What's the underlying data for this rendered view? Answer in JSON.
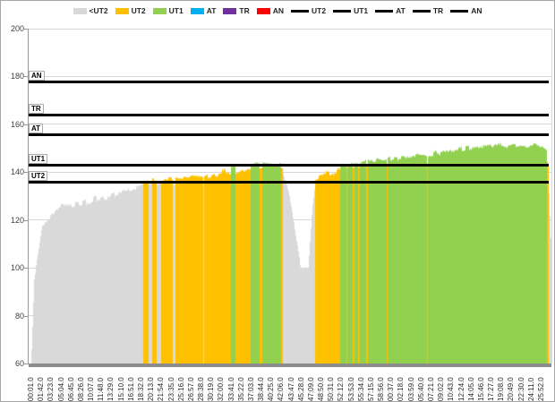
{
  "legend": {
    "area_series": [
      {
        "label": "<UT2",
        "color": "#d9d9d9"
      },
      {
        "label": "UT2",
        "color": "#ffc000"
      },
      {
        "label": "UT1",
        "color": "#92d050"
      },
      {
        "label": "AT",
        "color": "#00b0f0"
      },
      {
        "label": "TR",
        "color": "#7030a0"
      },
      {
        "label": "AN",
        "color": "#ff0000"
      }
    ],
    "line_series": [
      {
        "label": "UT2",
        "color": "#000000"
      },
      {
        "label": "UT1",
        "color": "#000000"
      },
      {
        "label": "AT",
        "color": "#000000"
      },
      {
        "label": "TR",
        "color": "#000000"
      },
      {
        "label": "AN",
        "color": "#000000"
      }
    ]
  },
  "chart_data": {
    "type": "area",
    "title": "",
    "xlabel": "",
    "ylabel": "",
    "y_axis": {
      "min": 60,
      "max": 200,
      "step": 20
    },
    "x_axis": {
      "start_offset_seconds": 1,
      "interval_seconds": 101,
      "labels": [
        "00:01.0",
        "01:42.0",
        "03:23.0",
        "05:04.0",
        "06:45.0",
        "08:26.0",
        "10:07.0",
        "11:48.0",
        "13:29.0",
        "15:10.0",
        "16:51.0",
        "18:32.0",
        "20:13.0",
        "21:54.0",
        "23:35.0",
        "25:16.0",
        "26:57.0",
        "28:38.0",
        "30:19.0",
        "32:00.0",
        "33:41.0",
        "35:22.0",
        "37:03.0",
        "38:44.0",
        "40:25.0",
        "42:06.0",
        "43:47.0",
        "45:28.0",
        "47:09.0",
        "48:50.0",
        "50:31.0",
        "52:12.0",
        "53:53.0",
        "55:34.0",
        "57:15.0",
        "58:56.0",
        "00:37.0",
        "02:18.0",
        "03:59.0",
        "05:40.0",
        "07:21.0",
        "09:02.0",
        "10:43.0",
        "12:24.0",
        "14:05.0",
        "15:46.0",
        "17:27.0",
        "19:08.0",
        "20:49.0",
        "22:30.0",
        "24:11.0",
        "25:52.0"
      ]
    },
    "thresholds": [
      {
        "name": "AN",
        "value": 178
      },
      {
        "name": "TR",
        "value": 164
      },
      {
        "name": "AT",
        "value": 156
      },
      {
        "name": "UT1",
        "value": 143
      },
      {
        "name": "UT2",
        "value": 136
      }
    ],
    "zones": {
      "below": {
        "label": "<UT2",
        "color": "#d9d9d9"
      },
      "ut2": {
        "label": "UT2",
        "color": "#ffc000"
      },
      "ut1": {
        "label": "UT1",
        "color": "#92d050"
      },
      "at": {
        "label": "AT",
        "color": "#00b0f0"
      },
      "tr": {
        "label": "TR",
        "color": "#7030a0"
      },
      "an": {
        "label": "AN",
        "color": "#ff0000"
      }
    },
    "series_segments_format": [
      "t0_seconds",
      "t1_seconds",
      "zone",
      "value_start",
      "value_end",
      "jitter"
    ],
    "series_segments": [
      [
        0,
        30,
        "below",
        60,
        95,
        1
      ],
      [
        30,
        110,
        "below",
        95,
        117,
        1
      ],
      [
        110,
        290,
        "below",
        117,
        125,
        1.2
      ],
      [
        290,
        790,
        "below",
        125,
        130,
        1.8
      ],
      [
        790,
        1075,
        "below",
        130,
        134.5,
        1.8
      ],
      [
        1075,
        1128,
        "below",
        134.5,
        135,
        1.2
      ],
      [
        1128,
        1183,
        "ut2",
        136.5,
        136.5,
        0.8
      ],
      [
        1183,
        1219,
        "below",
        135,
        135,
        0.6
      ],
      [
        1219,
        1265,
        "ut2",
        137,
        137,
        0.8
      ],
      [
        1265,
        1310,
        "below",
        135,
        135,
        0.6
      ],
      [
        1310,
        1429,
        "ut2",
        137,
        137.5,
        1
      ],
      [
        1429,
        1456,
        "below",
        135,
        135,
        0.5
      ],
      [
        1456,
        1738,
        "ut2",
        137.5,
        138.5,
        1.2
      ],
      [
        1738,
        1748,
        "below",
        135,
        135,
        0.4
      ],
      [
        1748,
        2020,
        "ut2",
        138.5,
        140.5,
        1.5
      ],
      [
        2020,
        2057,
        "ut1",
        142.8,
        143,
        0.7
      ],
      [
        2057,
        2211,
        "ut2",
        139.5,
        141,
        1.2
      ],
      [
        2211,
        2302,
        "ut1",
        143.5,
        143.5,
        1
      ],
      [
        2302,
        2330,
        "ut2",
        141.5,
        141.5,
        0.7
      ],
      [
        2330,
        2521,
        "ut1",
        143.5,
        143,
        1
      ],
      [
        2521,
        2539,
        "ut2",
        141.5,
        141.5,
        0.5
      ],
      [
        2539,
        2625,
        "below",
        140.5,
        127,
        1
      ],
      [
        2625,
        2715,
        "below",
        127,
        102,
        1
      ],
      [
        2715,
        2800,
        "below",
        100.5,
        99,
        1.2
      ],
      [
        2800,
        2840,
        "below",
        100,
        125,
        1
      ],
      [
        2840,
        2870,
        "below",
        125,
        135,
        0.8
      ],
      [
        2870,
        3000,
        "ut2",
        137,
        139.5,
        1.5
      ],
      [
        3000,
        3120,
        "ut2",
        139.5,
        141,
        1.5
      ],
      [
        3120,
        3180,
        "ut1",
        142.8,
        143.2,
        0.7
      ],
      [
        3180,
        3194,
        "ut2",
        142,
        142,
        0.3
      ],
      [
        3194,
        3245,
        "ut1",
        143.5,
        143.5,
        0.7
      ],
      [
        3245,
        3259,
        "ut2",
        142,
        142,
        0.3
      ],
      [
        3259,
        3300,
        "ut1",
        143.5,
        144,
        0.7
      ],
      [
        3300,
        3314,
        "ut2",
        142.2,
        142.2,
        0.3
      ],
      [
        3314,
        3385,
        "ut1",
        144,
        144.5,
        0.9
      ],
      [
        3385,
        3399,
        "ut2",
        142.5,
        142.5,
        0.3
      ],
      [
        3399,
        3585,
        "ut1",
        144.5,
        145.5,
        1.2
      ],
      [
        3585,
        3598,
        "ut2",
        142.8,
        142.8,
        0.3
      ],
      [
        3598,
        3995,
        "ut1",
        145.5,
        147.5,
        1.4
      ],
      [
        3995,
        4008,
        "ut2",
        143,
        143,
        0.3
      ],
      [
        4008,
        4450,
        "ut1",
        147.5,
        150.5,
        1.5
      ],
      [
        4450,
        5130,
        "ut1",
        150.5,
        151.5,
        1.3
      ],
      [
        5130,
        5205,
        "ut1",
        151,
        150,
        1
      ],
      [
        5205,
        5222,
        "ut2",
        146,
        142,
        0.5
      ],
      [
        5222,
        5296,
        "below",
        139,
        61,
        1
      ]
    ]
  },
  "colors": {
    "threshold_line": "#000000",
    "grid": "#d9d9d9",
    "axis": "#9a9a9a",
    "axis_bottom_bar": "#8c8c8c",
    "tick_text": "#262626",
    "frame": "#a6a6a6"
  }
}
